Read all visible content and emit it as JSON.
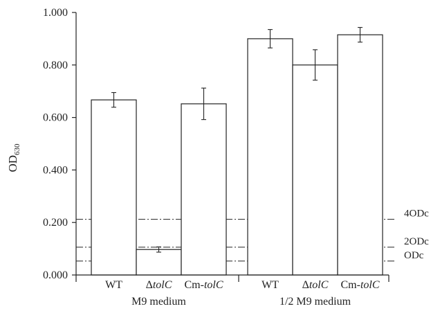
{
  "chart_data": {
    "type": "bar",
    "ylabel": {
      "main": "OD",
      "sub": "630"
    },
    "ylim": [
      0,
      1.0
    ],
    "yticks": [
      {
        "value": 0.0,
        "label": "0.000"
      },
      {
        "value": 0.2,
        "label": "0.200"
      },
      {
        "value": 0.4,
        "label": "0.400"
      },
      {
        "value": 0.6,
        "label": "0.600"
      },
      {
        "value": 0.8,
        "label": "0.800"
      },
      {
        "value": 1.0,
        "label": "1.000"
      }
    ],
    "groups": [
      {
        "label": "M9 medium",
        "bars": [
          {
            "label": [
              {
                "t": "WT",
                "i": false
              }
            ],
            "value": 0.667,
            "error": 0.028
          },
          {
            "label": [
              {
                "t": "Δ",
                "i": false
              },
              {
                "t": "tolC",
                "i": true
              }
            ],
            "value": 0.097,
            "error": 0.01
          },
          {
            "label": [
              {
                "t": "Cm-",
                "i": false
              },
              {
                "t": "tolC",
                "i": true
              }
            ],
            "value": 0.652,
            "error": 0.06
          }
        ]
      },
      {
        "label": "1/2 M9 medium",
        "bars": [
          {
            "label": [
              {
                "t": "WT",
                "i": false
              }
            ],
            "value": 0.9,
            "error": 0.035
          },
          {
            "label": [
              {
                "t": "Δ",
                "i": false
              },
              {
                "t": "tolC",
                "i": true
              }
            ],
            "value": 0.8,
            "error": 0.058
          },
          {
            "label": [
              {
                "t": "Cm-",
                "i": false
              },
              {
                "t": "tolC",
                "i": true
              }
            ],
            "value": 0.915,
            "error": 0.028
          }
        ]
      }
    ],
    "reference_lines": [
      {
        "label": "4ODc",
        "value": 0.212
      },
      {
        "label": "2ODc",
        "value": 0.106
      },
      {
        "label": "ODc",
        "value": 0.053
      }
    ],
    "grid": false,
    "legend": "none",
    "colors": {
      "bar_fill": "#ffffff",
      "bar_stroke": "#222222",
      "axis": "#222222",
      "ref_line": "#222222"
    }
  }
}
